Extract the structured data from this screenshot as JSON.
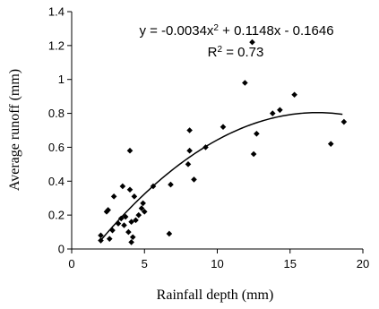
{
  "chart_data": {
    "type": "scatter",
    "title": "",
    "xlabel": "Rainfall depth (mm)",
    "ylabel": "Average runoff (mm)",
    "xlim": [
      0,
      20
    ],
    "ylim": [
      0,
      1.4
    ],
    "xticks": [
      0,
      5,
      10,
      15,
      20
    ],
    "yticks": [
      0,
      0.2,
      0.4,
      0.6,
      0.8,
      1,
      1.2,
      1.4
    ],
    "xtick_labels": [
      "0",
      "5",
      "10",
      "15",
      "20"
    ],
    "ytick_labels": [
      "0",
      "0.2",
      "0.4",
      "0.6",
      "0.8",
      "1",
      "1.2",
      "1.4"
    ],
    "grid": false,
    "marker": "diamond",
    "annotations": {
      "equation": {
        "prefix": "y = -0.0034x",
        "sup": "2",
        "suffix": " + 0.1148x - 0.1646"
      },
      "r_squared": {
        "prefix": "R",
        "sup": "2",
        "suffix": " = 0.73"
      }
    },
    "trendline": {
      "type": "polynomial",
      "coefficients": [
        -0.0034,
        0.1148,
        -0.1646
      ],
      "x_range": [
        2,
        18.6
      ]
    },
    "series": [
      {
        "points": [
          [
            2.0,
            0.05
          ],
          [
            2.0,
            0.08
          ],
          [
            2.4,
            0.22
          ],
          [
            2.5,
            0.23
          ],
          [
            2.6,
            0.06
          ],
          [
            2.8,
            0.11
          ],
          [
            2.9,
            0.31
          ],
          [
            3.2,
            0.15
          ],
          [
            3.4,
            0.18
          ],
          [
            3.5,
            0.37
          ],
          [
            3.6,
            0.14
          ],
          [
            3.7,
            0.19
          ],
          [
            3.9,
            0.1
          ],
          [
            4.0,
            0.35
          ],
          [
            4.0,
            0.58
          ],
          [
            4.1,
            0.16
          ],
          [
            4.1,
            0.04
          ],
          [
            4.2,
            0.07
          ],
          [
            4.3,
            0.31
          ],
          [
            4.4,
            0.17
          ],
          [
            4.6,
            0.2
          ],
          [
            4.8,
            0.24
          ],
          [
            4.9,
            0.27
          ],
          [
            5.0,
            0.22
          ],
          [
            5.6,
            0.37
          ],
          [
            6.7,
            0.09
          ],
          [
            6.8,
            0.38
          ],
          [
            8.0,
            0.5
          ],
          [
            8.1,
            0.58
          ],
          [
            8.1,
            0.7
          ],
          [
            8.4,
            0.41
          ],
          [
            9.2,
            0.6
          ],
          [
            10.4,
            0.72
          ],
          [
            11.9,
            0.98
          ],
          [
            12.4,
            1.22
          ],
          [
            12.5,
            0.56
          ],
          [
            12.7,
            0.68
          ],
          [
            13.8,
            0.8
          ],
          [
            14.3,
            0.82
          ],
          [
            15.3,
            0.91
          ],
          [
            17.8,
            0.62
          ],
          [
            18.7,
            0.75
          ]
        ]
      }
    ]
  }
}
